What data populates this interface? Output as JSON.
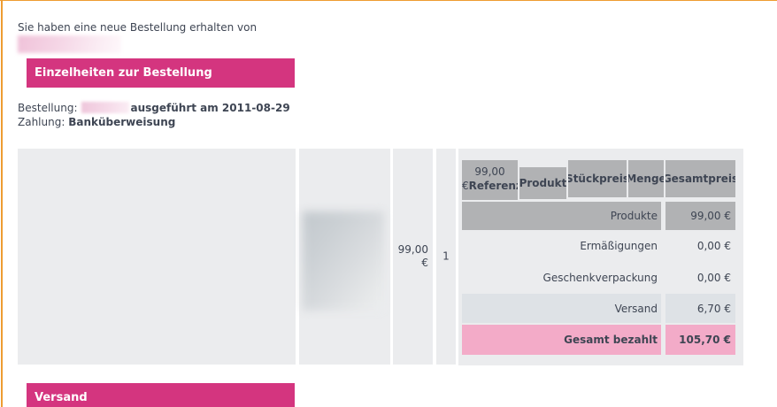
{
  "intro": {
    "text": "Sie haben eine neue Bestellung erhalten von"
  },
  "section_headers": {
    "order_details": "Einzelheiten zur Bestellung",
    "shipping": "Versand"
  },
  "order_info": {
    "order_label": "Bestellung:",
    "order_suffix": "ausgeführt am 2011-08-29",
    "payment_label": "Zahlung:",
    "payment_value": "Banküberweisung"
  },
  "product_row": {
    "unit_price_line1": "99,00",
    "unit_price_line2": "€",
    "quantity": "1"
  },
  "summary": {
    "header": {
      "ref_price": "99,00",
      "ref_currency": "€",
      "ref_label": "Referenz",
      "product": "Produkt",
      "unit_price": "Stückpreis",
      "qty": "Menge",
      "total": "Gesamtpreis"
    },
    "rows": [
      {
        "label": "Produkte",
        "value": "99,00 €",
        "style": "gray"
      },
      {
        "label": "Ermäßigungen",
        "value": "0,00 €",
        "style": "plain"
      },
      {
        "label": "Geschenkverpackung",
        "value": "0,00 €",
        "style": "plain"
      },
      {
        "label": "Versand",
        "value": "6,70 €",
        "style": "shipping"
      },
      {
        "label": "Gesamt bezahlt",
        "value": "105,70 €",
        "style": "total"
      }
    ]
  },
  "colors": {
    "accent_pink_bar": "#d4357f",
    "header_cell_gray": "#b1b2b4",
    "panel_background": "#ebecee",
    "shipping_row_background": "#dee2e6",
    "total_row_background": "#f3abc8",
    "border_orange": "#ee9c31",
    "text": "#3e4553"
  }
}
